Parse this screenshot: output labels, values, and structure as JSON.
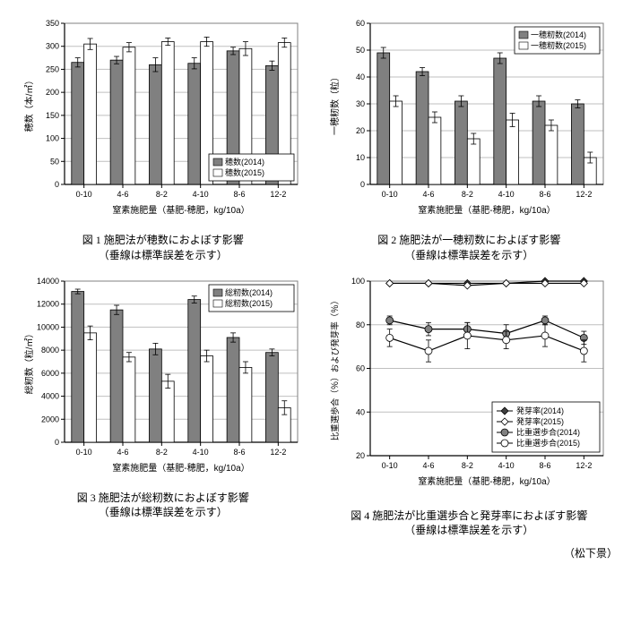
{
  "figure_font_family": "MS PGothic, Meiryo, sans-serif",
  "serif_font": "MS PMincho, serif",
  "author": "（松下景）",
  "categories": [
    "0-10",
    "4-6",
    "8-2",
    "4-10",
    "8-6",
    "12-2"
  ],
  "fig1": {
    "title": "図 1  施肥法が穂数におよぼす影響",
    "subtitle": "（垂線は標準誤差を示す）",
    "ylabel": "穂数（本/㎡）",
    "xlabel": "窒素施肥量（基肥-穂肥，kg/10a）",
    "ylim": [
      0,
      350
    ],
    "ytick_step": 50,
    "legend": [
      "穂数(2014)",
      "穂数(2015)"
    ],
    "legend_pos": "br",
    "bar_colors": [
      "#808080",
      "#ffffff"
    ],
    "border_color": "#000000",
    "grid_color": "#bfbfbf",
    "series2014": [
      265,
      270,
      260,
      263,
      290,
      258
    ],
    "series2015": [
      305,
      298,
      310,
      310,
      295,
      308
    ],
    "err2014": [
      10,
      8,
      15,
      12,
      8,
      10
    ],
    "err2015": [
      12,
      10,
      8,
      10,
      15,
      10
    ]
  },
  "fig2": {
    "title": "図 2  施肥法が一穂籾数におよぼす影響",
    "subtitle": "（垂線は標準誤差を示す）",
    "ylabel": "一穂籾数（粒）",
    "xlabel": "窒素施肥量（基肥-穂肥，kg/10a）",
    "ylim": [
      0,
      60
    ],
    "ytick_step": 10,
    "legend": [
      "一穂籾数(2014)",
      "一穂籾数(2015)"
    ],
    "legend_pos": "tr",
    "bar_colors": [
      "#808080",
      "#ffffff"
    ],
    "border_color": "#000000",
    "grid_color": "#bfbfbf",
    "series2014": [
      49,
      42,
      31,
      47,
      31,
      30
    ],
    "series2015": [
      31,
      25,
      17,
      24,
      22,
      10
    ],
    "err2014": [
      2,
      1.5,
      2,
      2,
      2,
      1.5
    ],
    "err2015": [
      2,
      2,
      2,
      2.5,
      2,
      2
    ]
  },
  "fig3": {
    "title": "図 3  施肥法が総籾数におよぼす影響",
    "subtitle": "（垂線は標準誤差を示す）",
    "ylabel": "総籾数（粒/㎡）",
    "xlabel": "窒素施肥量（基肥-穂肥，kg/10a）",
    "ylim": [
      0,
      14000
    ],
    "ytick_step": 2000,
    "legend": [
      "総籾数(2014)",
      "総籾数(2015)"
    ],
    "legend_pos": "tr",
    "bar_colors": [
      "#808080",
      "#ffffff"
    ],
    "border_color": "#000000",
    "grid_color": "#bfbfbf",
    "series2014": [
      13100,
      11500,
      8100,
      12400,
      9100,
      7800
    ],
    "series2015": [
      9500,
      7400,
      5300,
      7500,
      6500,
      3000
    ],
    "err2014": [
      200,
      400,
      500,
      300,
      400,
      300
    ],
    "err2015": [
      600,
      400,
      600,
      500,
      500,
      600
    ]
  },
  "fig4": {
    "title": "図 4  施肥法が比重選歩合と発芽率におよぼす影響",
    "subtitle": "（垂線は標準誤差を示す）",
    "ylabel": "比重選歩合（％）および発芽率（％）",
    "xlabel": "窒素施肥量（基肥-穂肥，kg/10a）",
    "ylim": [
      20,
      100
    ],
    "ytick_step": 20,
    "legend": [
      "発芽率(2014)",
      "発芽率(2015)",
      "比重選歩合(2014)",
      "比重選歩合(2015)"
    ],
    "legend_pos": "br",
    "markers": [
      "diamond-filled",
      "diamond-open",
      "circle-filled",
      "circle-open"
    ],
    "line_color": "#000000",
    "grid_color": "#bfbfbf",
    "data": {
      "hatsu2014": [
        99,
        99,
        99,
        99,
        100,
        100
      ],
      "hatsu2015": [
        99,
        99,
        98,
        99,
        99,
        99
      ],
      "hiju2014": [
        82,
        78,
        78,
        76,
        82,
        74
      ],
      "hiju2015": [
        74,
        68,
        75,
        73,
        75,
        68
      ]
    },
    "err": {
      "hiju2014": [
        2,
        3,
        3,
        4,
        2,
        3
      ],
      "hiju2015": [
        4,
        5,
        6,
        4,
        5,
        5
      ]
    }
  }
}
